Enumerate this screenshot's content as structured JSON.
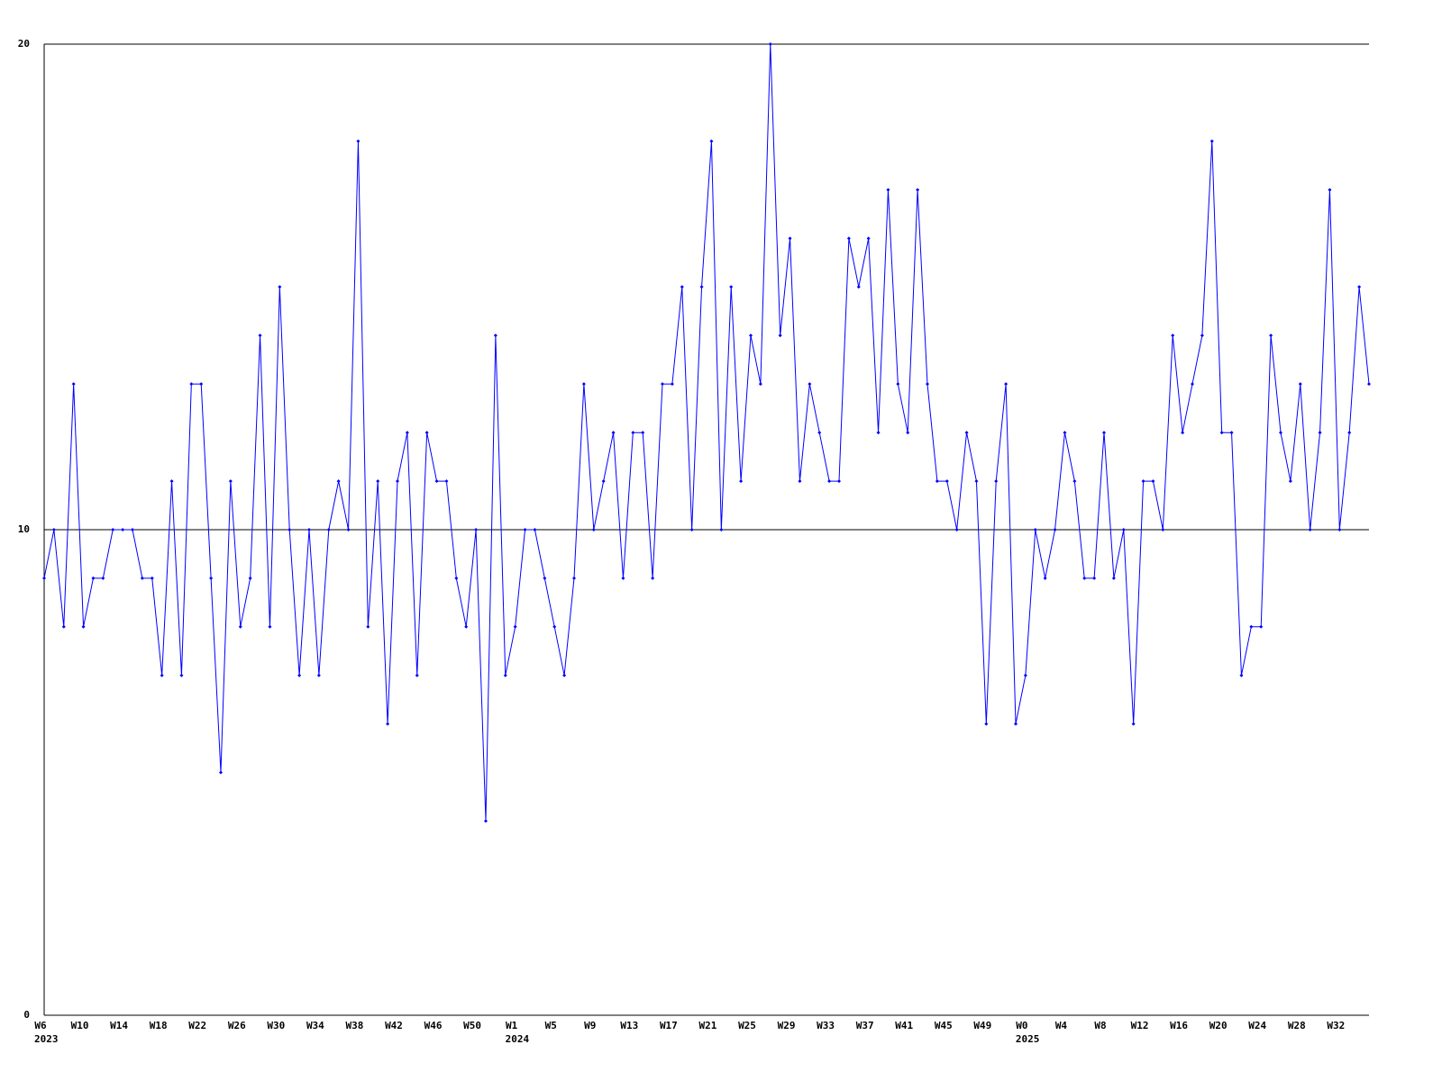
{
  "chart_data": {
    "type": "line",
    "categories": [
      "W6",
      null,
      null,
      null,
      "W10",
      null,
      null,
      null,
      "W14",
      null,
      null,
      null,
      "W18",
      null,
      null,
      null,
      "W22",
      null,
      null,
      null,
      "W26",
      null,
      null,
      null,
      "W30",
      null,
      null,
      null,
      "W34",
      null,
      null,
      null,
      "W38",
      null,
      null,
      null,
      "W42",
      null,
      null,
      null,
      "W46",
      null,
      null,
      null,
      "W50",
      null,
      null,
      null,
      "W1",
      null,
      null,
      null,
      "W5",
      null,
      null,
      null,
      "W9",
      null,
      null,
      null,
      "W13",
      null,
      null,
      null,
      "W17",
      null,
      null,
      null,
      "W21",
      null,
      null,
      null,
      "W25",
      null,
      null,
      null,
      "W29",
      null,
      null,
      null,
      "W33",
      null,
      null,
      null,
      "W37",
      null,
      null,
      null,
      "W41",
      null,
      null,
      null,
      "W45",
      null,
      null,
      null,
      "W49",
      null,
      null,
      null,
      "W0",
      null,
      null,
      null,
      "W4",
      null,
      null,
      null,
      "W8",
      null,
      null,
      null,
      "W12",
      null,
      null,
      null,
      "W16",
      null,
      null,
      null,
      "W20",
      null,
      null,
      null,
      "W24",
      null,
      null,
      null,
      "W28",
      null,
      null,
      null,
      "W32",
      null,
      null,
      null
    ],
    "year_labels": [
      "2023",
      null,
      null,
      null,
      null,
      null,
      null,
      null,
      null,
      null,
      null,
      null,
      null,
      null,
      null,
      null,
      null,
      null,
      null,
      null,
      null,
      null,
      null,
      null,
      null,
      null,
      null,
      null,
      null,
      null,
      null,
      null,
      null,
      null,
      null,
      null,
      null,
      null,
      null,
      null,
      null,
      null,
      null,
      null,
      null,
      null,
      null,
      null,
      "2024",
      null,
      null,
      null,
      null,
      null,
      null,
      null,
      null,
      null,
      null,
      null,
      null,
      null,
      null,
      null,
      null,
      null,
      null,
      null,
      null,
      null,
      null,
      null,
      null,
      null,
      null,
      null,
      null,
      null,
      null,
      null,
      null,
      null,
      null,
      null,
      null,
      null,
      null,
      null,
      null,
      null,
      null,
      null,
      null,
      null,
      null,
      null,
      null,
      null,
      null,
      null,
      "2025",
      null,
      null,
      null,
      null,
      null,
      null,
      null,
      null,
      null,
      null,
      null,
      null,
      null,
      null,
      null,
      null,
      null,
      null,
      null,
      null,
      null,
      null,
      null,
      null,
      null,
      null,
      null,
      null,
      null,
      null,
      null,
      null,
      null,
      null,
      null
    ],
    "series": [
      {
        "color": "#0000ff",
        "values": [
          9,
          10,
          8,
          13,
          8,
          9,
          9,
          10,
          10,
          10,
          9,
          9,
          7,
          11,
          7,
          13,
          13,
          9,
          5,
          11,
          8,
          9,
          14,
          8,
          15,
          10,
          7,
          10,
          7,
          10,
          11,
          10,
          18,
          8,
          11,
          6,
          11,
          12,
          7,
          12,
          11,
          11,
          9,
          8,
          10,
          4,
          14,
          7,
          8,
          10,
          10,
          9,
          8,
          7,
          9,
          13,
          10,
          11,
          12,
          9,
          12,
          12,
          9,
          13,
          13,
          15,
          10,
          15,
          18,
          10,
          15,
          11,
          14,
          13,
          20,
          14,
          16,
          11,
          13,
          12,
          11,
          11,
          16,
          15,
          16,
          12,
          17,
          13,
          12,
          17,
          13,
          11,
          11,
          10,
          12,
          11,
          6,
          11,
          13,
          6,
          7,
          10,
          9,
          10,
          12,
          11,
          9,
          9,
          12,
          9,
          10,
          6,
          11,
          11,
          10,
          14,
          12,
          13,
          14,
          18,
          12,
          12,
          7,
          8,
          8,
          14,
          12,
          11,
          13,
          10,
          12,
          17,
          10,
          12,
          15,
          13
        ]
      }
    ],
    "ylim": [
      0,
      20
    ],
    "yticks": [
      0,
      10,
      20
    ],
    "grid": true
  }
}
